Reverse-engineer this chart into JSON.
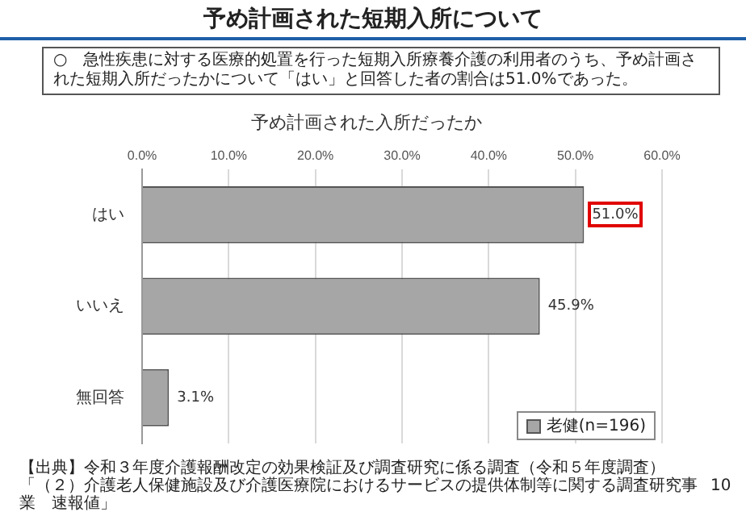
{
  "chart_data": {
    "type": "bar",
    "orientation": "horizontal",
    "title": "予め計画された入所だったか",
    "categories": [
      "はい",
      "いいえ",
      "無回答"
    ],
    "series": [
      {
        "name": "老健(n=196)",
        "color": "#a6a6a6",
        "values": [
          51.0,
          45.9,
          3.1
        ],
        "value_labels": [
          "51.0%",
          "45.9%",
          "3.1%"
        ]
      }
    ],
    "xlim": [
      0,
      60
    ],
    "xticks": [
      {
        "value": 0,
        "label": "0.0%"
      },
      {
        "value": 10,
        "label": "10.0%"
      },
      {
        "value": 20,
        "label": "20.0%"
      },
      {
        "value": 30,
        "label": "30.0%"
      },
      {
        "value": 40,
        "label": "40.0%"
      },
      {
        "value": 50,
        "label": "50.0%"
      },
      {
        "value": 60,
        "label": "60.0%"
      }
    ],
    "grid": "x",
    "legend": "bottom right",
    "annotations": [
      "予め計画された短期入所について",
      "○　急性疾患に対する医療的処置を行った短期入所療養介護の利用者のうち、予め計画された短期入所だったかについて「はい」と回答した者の割合は51.0%であった。",
      "【出典】令和３年度介護報酬改定の効果検証及び調査研究に係る調査（令和５年度調査）",
      "「（２）介護老人保健施設及び介護医療院におけるサービスの提供体制等に関する調査研究事業　速報値」",
      "10"
    ]
  }
}
